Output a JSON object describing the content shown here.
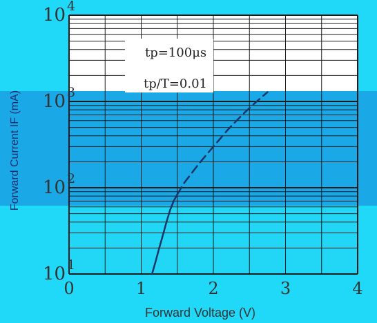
{
  "chart_data": {
    "type": "line",
    "title": "",
    "xlabel": "Forward Voltage (V)",
    "ylabel": "Forward Current IF (mA)",
    "xlim": [
      0,
      4
    ],
    "ylim": [
      10,
      10000
    ],
    "y_scale": "log",
    "grid": true,
    "x_ticks": [
      "0",
      "1",
      "2",
      "3",
      "4"
    ],
    "y_ticks": [
      {
        "base": "10",
        "exp": "1"
      },
      {
        "base": "10",
        "exp": "2"
      },
      {
        "base": "10",
        "exp": "3"
      },
      {
        "base": "10",
        "exp": "4"
      }
    ],
    "annotations": [
      "tp=100μs",
      "tp/T=0.01"
    ],
    "series": [
      {
        "style": "solid",
        "points": [
          [
            1.15,
            10
          ],
          [
            1.2,
            14
          ],
          [
            1.25,
            20
          ],
          [
            1.3,
            28
          ],
          [
            1.35,
            40
          ],
          [
            1.4,
            55
          ],
          [
            1.45,
            70
          ],
          [
            1.5,
            84
          ]
        ]
      },
      {
        "style": "dashed",
        "points": [
          [
            1.5,
            84
          ],
          [
            1.6,
            115
          ],
          [
            1.8,
            190
          ],
          [
            2.0,
            300
          ],
          [
            2.2,
            470
          ],
          [
            2.4,
            700
          ],
          [
            2.6,
            1000
          ],
          [
            2.75,
            1280
          ]
        ]
      }
    ],
    "colors": {
      "background": "#20d8f8",
      "plot_upper": "#ffffff",
      "plot_band": "#1aa8e6",
      "plot_lower": "#22d6f5",
      "grid": "#1c1c1c",
      "curve": "#1a3566"
    }
  }
}
